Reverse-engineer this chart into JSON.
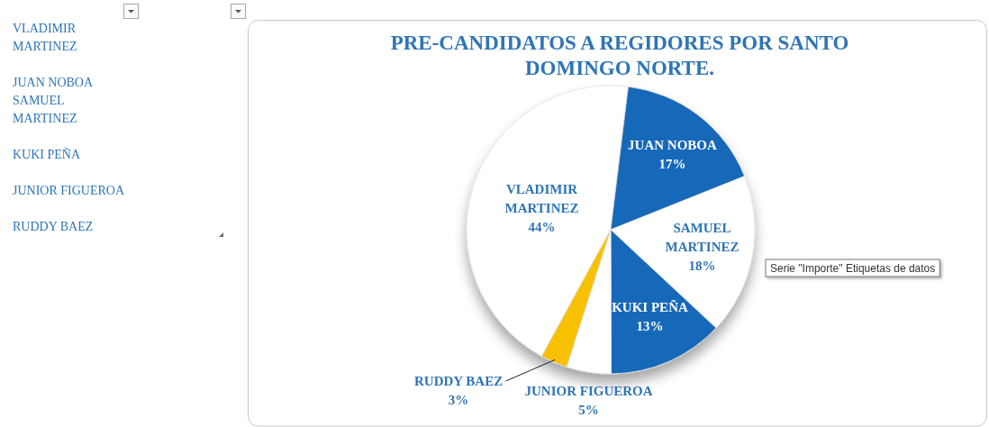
{
  "chart_data": [
    {
      "type": "other",
      "annotations": [
        "VLADIMIR MARTINEZ",
        "JUAN NOBOA",
        "SAMUEL MARTINEZ",
        "KUKI PEÑA",
        "JUNIOR FIGUEROA",
        "RUDDY BAEZ"
      ]
    },
    {
      "type": "pie",
      "title": "PRE-CANDIDATOS A REGIDORES POR SANTO DOMINGO NORTE.",
      "categories": [
        "VLADIMIR MARTINEZ",
        "JUAN NOBOA",
        "SAMUEL MARTINEZ",
        "KUKI PEÑA",
        "JUNIOR FIGUEROA",
        "RUDDY BAEZ"
      ],
      "values": [
        44,
        17,
        18,
        13,
        5,
        3
      ],
      "colors": [
        "#ffffff",
        "#1767b9",
        "#ffffff",
        "#1767b9",
        "#ffffff",
        "#f8c100"
      ],
      "value_labels": [
        "44%",
        "17%",
        "18%",
        "13%",
        "5%",
        "3%"
      ],
      "annotations": [
        "Serie \"Importe\" Etiquetas de datos"
      ]
    }
  ]
}
